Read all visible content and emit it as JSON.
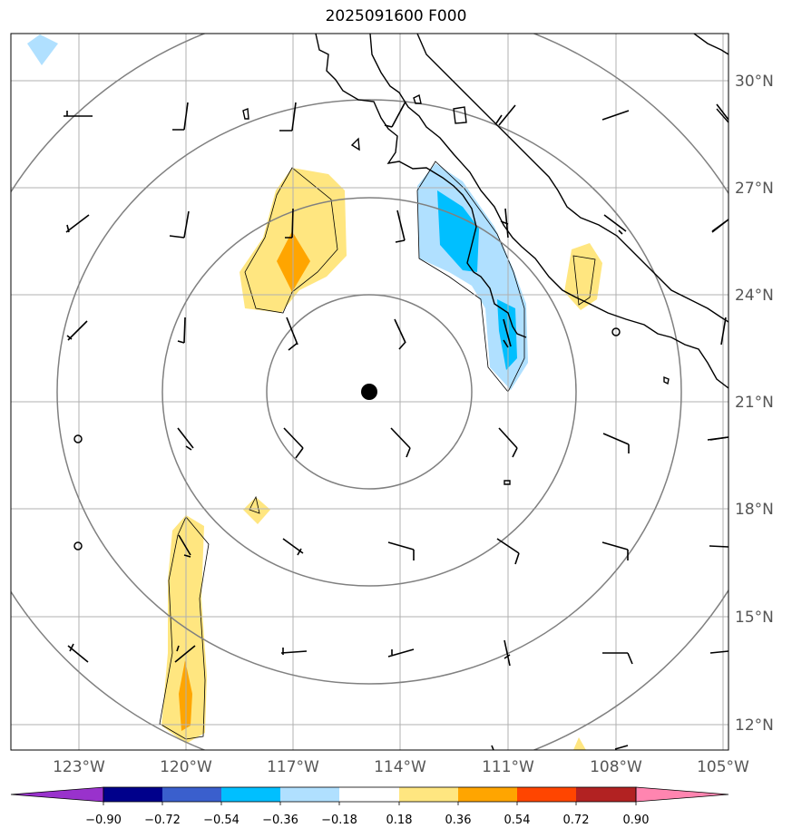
{
  "title": "2025091600 F000",
  "map": {
    "lat_labels": [
      "30°N",
      "27°N",
      "24°N",
      "21°N",
      "18°N",
      "15°N",
      "12°N"
    ],
    "lon_labels": [
      "123°W",
      "120°W",
      "117°W",
      "114°W",
      "111°W",
      "108°W",
      "105°W"
    ],
    "center": {
      "lon": -114.9,
      "lat": 21.3
    },
    "colors": {
      "light_yellow": "#ffe680",
      "orange": "#ffa500",
      "light_blue": "#b0e0ff",
      "blue": "#00bfff",
      "ring": "#808080",
      "grid": "#b0b0b0"
    }
  },
  "colorbar": {
    "ticks": [
      "−0.90",
      "−0.72",
      "−0.54",
      "−0.36",
      "−0.18",
      "0.18",
      "0.36",
      "0.54",
      "0.72",
      "0.90"
    ],
    "colors": [
      "#9932cc",
      "#00008b",
      "#3a5fcd",
      "#00bfff",
      "#b0e0ff",
      "#ffffff",
      "#ffe680",
      "#ffa500",
      "#ff4500",
      "#b22222",
      "#ff85b0"
    ]
  }
}
